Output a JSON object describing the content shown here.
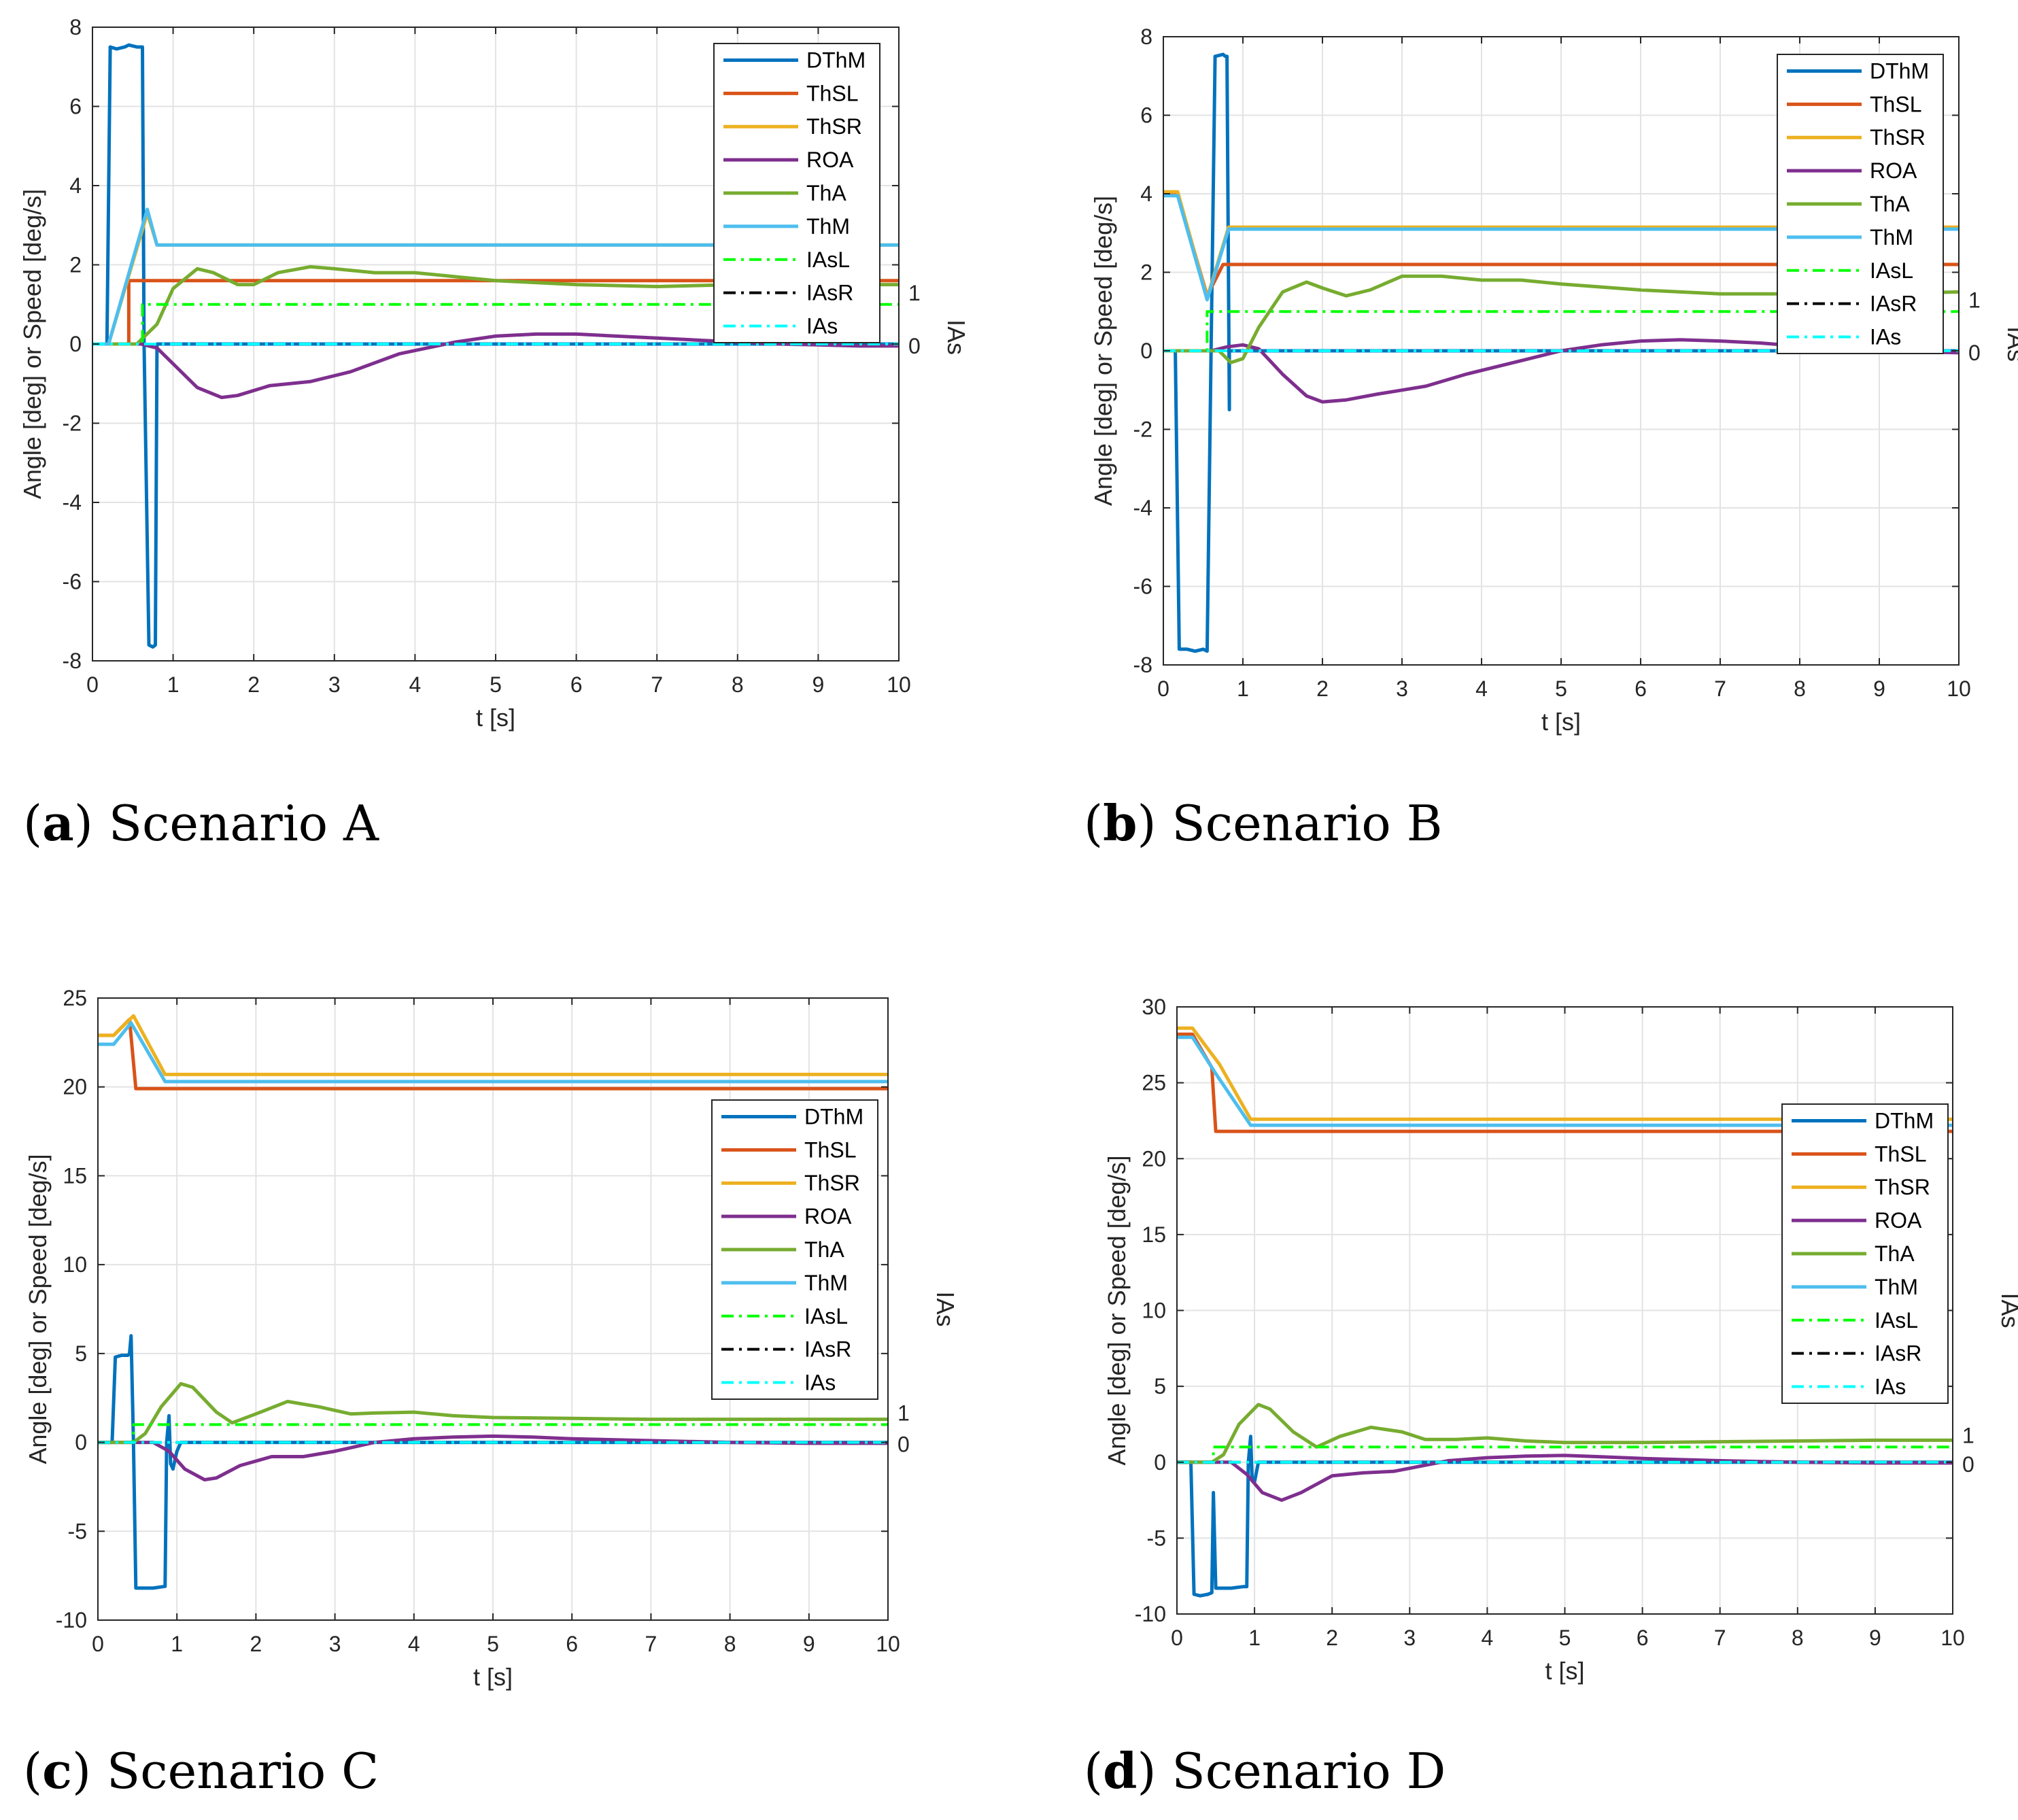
{
  "captions": [
    {
      "letter": "a",
      "text": "Scenario A"
    },
    {
      "letter": "b",
      "text": "Scenario B"
    },
    {
      "letter": "c",
      "text": "Scenario C"
    },
    {
      "letter": "d",
      "text": "Scenario D"
    }
  ],
  "series_styles": [
    {
      "name": "DThM",
      "color": "#0072BD",
      "dash": "solid"
    },
    {
      "name": "ThSL",
      "color": "#D95319",
      "dash": "solid"
    },
    {
      "name": "ThSR",
      "color": "#EDB120",
      "dash": "solid"
    },
    {
      "name": "ROA",
      "color": "#7E2F8E",
      "dash": "solid"
    },
    {
      "name": "ThA",
      "color": "#77AC30",
      "dash": "solid"
    },
    {
      "name": "ThM",
      "color": "#4DBEEE",
      "dash": "solid"
    },
    {
      "name": "IAsL",
      "color": "#00FF00",
      "dash": "dashdot"
    },
    {
      "name": "IAsR",
      "color": "#000000",
      "dash": "dashdot"
    },
    {
      "name": "IAs",
      "color": "#00FFFF",
      "dash": "dashdot"
    }
  ],
  "chart_data": [
    {
      "type": "line",
      "xlabel": "t [s]",
      "ylabel": "Angle [deg] or Speed [deg/s]",
      "y2label": "IAs",
      "xlim": [
        0,
        10
      ],
      "ylim": [
        -8,
        8
      ],
      "xticks": [
        0,
        1,
        2,
        3,
        4,
        5,
        6,
        7,
        8,
        9,
        10
      ],
      "yticks": [
        -8,
        -6,
        -4,
        -2,
        0,
        2,
        4,
        6,
        8
      ],
      "y2ticks": [
        {
          "label": "0",
          "y": 0
        },
        {
          "label": "1",
          "y": 1
        }
      ],
      "grid": true,
      "legend_position": "top-right",
      "series": [
        {
          "name": "DThM",
          "x": [
            0,
            0.18,
            0.22,
            0.3,
            0.4,
            0.45,
            0.55,
            0.62,
            0.64,
            0.7,
            0.75,
            0.78,
            0.8,
            0.82,
            0.85,
            1,
            10
          ],
          "y": [
            0,
            0,
            7.5,
            7.45,
            7.5,
            7.55,
            7.5,
            7.5,
            0,
            -7.6,
            -7.65,
            -7.6,
            0,
            0,
            0,
            0,
            0
          ]
        },
        {
          "name": "ThSL",
          "x": [
            0,
            0.2,
            0.45,
            0.45,
            10
          ],
          "y": [
            0,
            0,
            0,
            1.6,
            1.6
          ]
        },
        {
          "name": "ThSR",
          "x": [
            0,
            0.2,
            0.68,
            0.8,
            10
          ],
          "y": [
            0,
            0,
            3.3,
            2.5,
            2.5
          ]
        },
        {
          "name": "ROA",
          "x": [
            0,
            0.6,
            0.8,
            1.0,
            1.3,
            1.6,
            1.8,
            2.2,
            2.7,
            3.2,
            3.8,
            4.5,
            5.0,
            5.5,
            6.0,
            6.5,
            7.0,
            7.5,
            8.0,
            8.5,
            9.0,
            9.5,
            10
          ],
          "y": [
            0,
            0,
            -0.1,
            -0.5,
            -1.1,
            -1.35,
            -1.3,
            -1.05,
            -0.95,
            -0.7,
            -0.25,
            0.05,
            0.2,
            0.25,
            0.25,
            0.2,
            0.15,
            0.1,
            0.05,
            0,
            -0.02,
            -0.05,
            -0.05
          ]
        },
        {
          "name": "ThA",
          "x": [
            0,
            0.55,
            0.8,
            1.0,
            1.3,
            1.5,
            1.8,
            2.0,
            2.3,
            2.7,
            3.0,
            3.5,
            4.0,
            4.5,
            5.0,
            6.0,
            7.0,
            8.0,
            9.0,
            10
          ],
          "y": [
            0,
            0,
            0.5,
            1.4,
            1.9,
            1.8,
            1.5,
            1.5,
            1.8,
            1.95,
            1.9,
            1.8,
            1.8,
            1.7,
            1.6,
            1.5,
            1.45,
            1.5,
            1.5,
            1.5
          ]
        },
        {
          "name": "ThM",
          "x": [
            0,
            0.2,
            0.68,
            0.8,
            10
          ],
          "y": [
            0,
            0,
            3.4,
            2.5,
            2.5
          ]
        },
        {
          "name": "IAsL",
          "x": [
            0,
            0.62,
            0.62,
            10
          ],
          "y": [
            0,
            0,
            1,
            1
          ]
        },
        {
          "name": "IAsR",
          "x": [
            0,
            10
          ],
          "y": [
            0,
            0
          ]
        },
        {
          "name": "IAs",
          "x": [
            0,
            10
          ],
          "y": [
            0,
            0
          ]
        }
      ]
    },
    {
      "type": "line",
      "xlabel": "t [s]",
      "ylabel": "Angle [deg] or Speed [deg/s]",
      "y2label": "IAs",
      "xlim": [
        0,
        10
      ],
      "ylim": [
        -8,
        8
      ],
      "xticks": [
        0,
        1,
        2,
        3,
        4,
        5,
        6,
        7,
        8,
        9,
        10
      ],
      "yticks": [
        -8,
        -6,
        -4,
        -2,
        0,
        2,
        4,
        6,
        8
      ],
      "y2ticks": [
        {
          "label": "0",
          "y": 0
        },
        {
          "label": "1",
          "y": 1
        }
      ],
      "grid": true,
      "legend_position": "top-right",
      "series": [
        {
          "name": "DThM",
          "x": [
            0,
            0.15,
            0.2,
            0.3,
            0.4,
            0.5,
            0.55,
            0.6,
            0.6,
            0.65,
            0.75,
            0.78,
            0.8,
            0.83,
            0.83,
            1,
            10
          ],
          "y": [
            0,
            0,
            -7.6,
            -7.6,
            -7.65,
            -7.6,
            -7.65,
            0,
            0,
            7.5,
            7.55,
            7.5,
            7.5,
            -1.5,
            0,
            0,
            0
          ]
        },
        {
          "name": "ThSL",
          "x": [
            0,
            0.18,
            0.55,
            0.75,
            0.8,
            10
          ],
          "y": [
            4.0,
            4.0,
            1.4,
            2.2,
            2.2,
            2.2
          ]
        },
        {
          "name": "ThSR",
          "x": [
            0,
            0.18,
            0.55,
            0.82,
            10
          ],
          "y": [
            4.05,
            4.05,
            1.35,
            3.15,
            3.15
          ]
        },
        {
          "name": "ROA",
          "x": [
            0,
            0.6,
            0.8,
            1.0,
            1.2,
            1.5,
            1.8,
            2.0,
            2.3,
            2.7,
            3.0,
            3.3,
            3.8,
            4.5,
            5.0,
            5.5,
            6.0,
            6.5,
            7.0,
            7.5,
            8.0,
            9.0,
            10
          ],
          "y": [
            0,
            0,
            0.1,
            0.15,
            0.05,
            -0.6,
            -1.15,
            -1.3,
            -1.25,
            -1.1,
            -1.0,
            -0.9,
            -0.6,
            -0.25,
            0,
            0.15,
            0.25,
            0.28,
            0.25,
            0.2,
            0.12,
            0,
            -0.05
          ]
        },
        {
          "name": "ThA",
          "x": [
            0,
            0.55,
            0.7,
            0.85,
            1.0,
            1.2,
            1.5,
            1.8,
            2.0,
            2.3,
            2.6,
            3.0,
            3.5,
            4.0,
            4.5,
            5.0,
            6.0,
            7.0,
            8.0,
            9.0,
            10
          ],
          "y": [
            0,
            0,
            0,
            -0.3,
            -0.2,
            0.6,
            1.5,
            1.75,
            1.6,
            1.4,
            1.55,
            1.9,
            1.9,
            1.8,
            1.8,
            1.7,
            1.55,
            1.45,
            1.45,
            1.45,
            1.5
          ]
        },
        {
          "name": "ThM",
          "x": [
            0,
            0.18,
            0.55,
            0.82,
            10
          ],
          "y": [
            3.95,
            3.95,
            1.3,
            3.1,
            3.1
          ]
        },
        {
          "name": "IAsL",
          "x": [
            0,
            0.55,
            0.55,
            10
          ],
          "y": [
            0,
            0,
            1,
            1
          ]
        },
        {
          "name": "IAsR",
          "x": [
            0,
            10
          ],
          "y": [
            0,
            0
          ]
        },
        {
          "name": "IAs",
          "x": [
            0,
            10
          ],
          "y": [
            0,
            0
          ]
        }
      ]
    },
    {
      "type": "line",
      "xlabel": "t [s]",
      "ylabel": "Angle [deg] or Speed [deg/s]",
      "y2label": "IAs",
      "xlim": [
        0,
        10
      ],
      "ylim": [
        -10,
        25
      ],
      "xticks": [
        0,
        1,
        2,
        3,
        4,
        5,
        6,
        7,
        8,
        9,
        10
      ],
      "yticks": [
        -10,
        -5,
        0,
        5,
        10,
        15,
        20,
        25
      ],
      "y2ticks": [
        {
          "label": "0",
          "y": 0
        },
        {
          "label": "1",
          "y": 1
        }
      ],
      "grid": true,
      "legend_position": "right",
      "series": [
        {
          "name": "DThM",
          "x": [
            0,
            0.18,
            0.22,
            0.3,
            0.38,
            0.4,
            0.42,
            0.45,
            0.48,
            0.55,
            0.7,
            0.85,
            0.87,
            0.9,
            0.92,
            0.95,
            1.0,
            1.05,
            10
          ],
          "y": [
            0,
            0,
            4.8,
            4.9,
            4.9,
            5.0,
            6.0,
            0,
            -8.2,
            -8.2,
            -8.2,
            -8.1,
            0,
            1.5,
            -1.2,
            -1.5,
            -0.5,
            0,
            0
          ]
        },
        {
          "name": "ThSL",
          "x": [
            0,
            0.2,
            0.4,
            0.48,
            0.5,
            10
          ],
          "y": [
            22.9,
            22.9,
            23.8,
            19.9,
            19.9,
            19.9
          ]
        },
        {
          "name": "ThSR",
          "x": [
            0,
            0.2,
            0.45,
            0.85,
            10
          ],
          "y": [
            22.9,
            22.9,
            24.0,
            20.7,
            20.7
          ]
        },
        {
          "name": "ROA",
          "x": [
            0,
            0.7,
            0.9,
            1.1,
            1.35,
            1.5,
            1.8,
            2.2,
            2.6,
            3.0,
            3.5,
            4.0,
            4.5,
            5.0,
            5.5,
            6.0,
            7.0,
            8.0,
            9.0,
            10
          ],
          "y": [
            0,
            0,
            -0.5,
            -1.5,
            -2.1,
            -2.0,
            -1.3,
            -0.8,
            -0.8,
            -0.5,
            0,
            0.2,
            0.3,
            0.35,
            0.3,
            0.2,
            0.1,
            0,
            -0.05,
            -0.05
          ]
        },
        {
          "name": "ThA",
          "x": [
            0,
            0.45,
            0.6,
            0.8,
            1.05,
            1.2,
            1.5,
            1.7,
            2.0,
            2.4,
            2.8,
            3.2,
            3.5,
            4.0,
            4.5,
            5.0,
            6.0,
            7.0,
            8.0,
            9.0,
            10
          ],
          "y": [
            0,
            0,
            0.5,
            2.0,
            3.3,
            3.1,
            1.7,
            1.1,
            1.6,
            2.3,
            2.0,
            1.6,
            1.65,
            1.7,
            1.5,
            1.4,
            1.35,
            1.3,
            1.3,
            1.3,
            1.3
          ]
        },
        {
          "name": "ThM",
          "x": [
            0,
            0.2,
            0.42,
            0.85,
            10
          ],
          "y": [
            22.4,
            22.4,
            23.6,
            20.3,
            20.3
          ]
        },
        {
          "name": "IAsL",
          "x": [
            0,
            0.45,
            0.45,
            10
          ],
          "y": [
            0,
            0,
            1,
            1
          ]
        },
        {
          "name": "IAsR",
          "x": [
            0,
            10
          ],
          "y": [
            0,
            0
          ]
        },
        {
          "name": "IAs",
          "x": [
            0,
            10
          ],
          "y": [
            0,
            0
          ]
        }
      ]
    },
    {
      "type": "line",
      "xlabel": "t [s]",
      "ylabel": "Angle [deg] or Speed [deg/s]",
      "y2label": "IAs",
      "xlim": [
        0,
        10
      ],
      "ylim": [
        -10,
        30
      ],
      "xticks": [
        0,
        1,
        2,
        3,
        4,
        5,
        6,
        7,
        8,
        9,
        10
      ],
      "yticks": [
        -10,
        -5,
        0,
        5,
        10,
        15,
        20,
        25,
        30
      ],
      "y2ticks": [
        {
          "label": "0",
          "y": 0
        },
        {
          "label": "1",
          "y": 1
        }
      ],
      "grid": true,
      "legend_position": "right",
      "series": [
        {
          "name": "DThM",
          "x": [
            0,
            0.18,
            0.22,
            0.3,
            0.4,
            0.45,
            0.47,
            0.5,
            0.55,
            0.7,
            0.85,
            0.9,
            0.92,
            0.95,
            0.97,
            1.0,
            1.05,
            10
          ],
          "y": [
            0,
            0,
            -8.7,
            -8.8,
            -8.7,
            -8.6,
            -2.0,
            -8.3,
            -8.3,
            -8.3,
            -8.2,
            -8.2,
            0,
            1.7,
            -1.2,
            -1.3,
            0,
            0
          ]
        },
        {
          "name": "ThSL",
          "x": [
            0,
            0.2,
            0.45,
            0.5,
            0.52,
            10
          ],
          "y": [
            28.2,
            28.2,
            26.0,
            21.8,
            21.8,
            21.8
          ]
        },
        {
          "name": "ThSR",
          "x": [
            0,
            0.2,
            0.55,
            0.95,
            10
          ],
          "y": [
            28.6,
            28.6,
            26.2,
            22.6,
            22.6
          ]
        },
        {
          "name": "ROA",
          "x": [
            0,
            0.7,
            0.9,
            1.1,
            1.35,
            1.6,
            2.0,
            2.4,
            2.8,
            3.2,
            3.5,
            4.0,
            4.5,
            5.0,
            5.5,
            6.0,
            7.0,
            8.0,
            9.0,
            10
          ],
          "y": [
            0,
            0,
            -0.8,
            -2.0,
            -2.5,
            -2.0,
            -0.9,
            -0.7,
            -0.6,
            -0.2,
            0.1,
            0.3,
            0.4,
            0.45,
            0.35,
            0.25,
            0.1,
            0,
            -0.05,
            -0.05
          ]
        },
        {
          "name": "ThA",
          "x": [
            0,
            0.45,
            0.6,
            0.8,
            1.05,
            1.2,
            1.5,
            1.8,
            2.1,
            2.5,
            2.9,
            3.2,
            3.6,
            4.0,
            4.5,
            5.0,
            6.0,
            7.0,
            8.0,
            9.0,
            10
          ],
          "y": [
            0,
            0,
            0.5,
            2.5,
            3.8,
            3.5,
            2.0,
            1.0,
            1.7,
            2.3,
            2.0,
            1.5,
            1.5,
            1.6,
            1.4,
            1.3,
            1.3,
            1.35,
            1.4,
            1.45,
            1.45
          ]
        },
        {
          "name": "ThM",
          "x": [
            0,
            0.2,
            0.5,
            0.95,
            10
          ],
          "y": [
            28.0,
            28.0,
            25.6,
            22.2,
            22.2
          ]
        },
        {
          "name": "IAsL",
          "x": [
            0,
            0.47,
            0.47,
            10
          ],
          "y": [
            0,
            0,
            1,
            1
          ]
        },
        {
          "name": "IAsR",
          "x": [
            0,
            10
          ],
          "y": [
            0,
            0
          ]
        },
        {
          "name": "IAs",
          "x": [
            0,
            10
          ],
          "y": [
            0,
            0
          ]
        }
      ]
    }
  ]
}
